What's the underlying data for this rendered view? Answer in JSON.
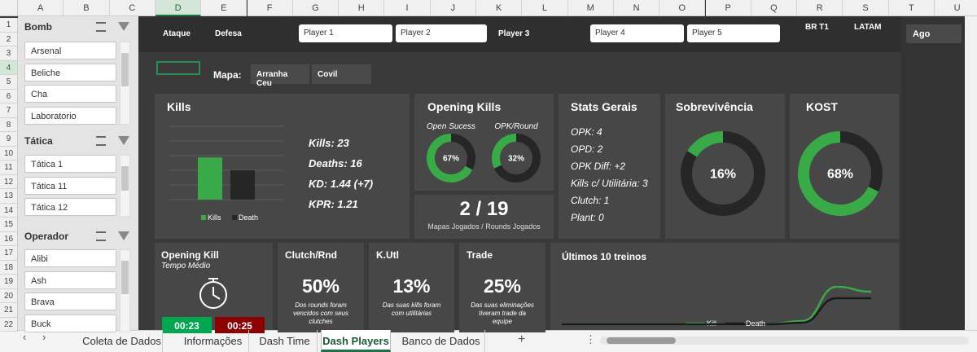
{
  "sheet": {
    "columns": [
      "A",
      "B",
      "C",
      "D",
      "E",
      "F",
      "G",
      "H",
      "I",
      "J",
      "K",
      "L",
      "M",
      "N",
      "O",
      "P",
      "Q",
      "R",
      "S",
      "T",
      "U"
    ],
    "rows": [
      1,
      2,
      3,
      4,
      5,
      6,
      7,
      8,
      9,
      10,
      11,
      12,
      13,
      14,
      15,
      16,
      17,
      18,
      19,
      20,
      21,
      22
    ]
  },
  "slicers": [
    {
      "title": "Bomb",
      "items": [
        "Arsenal",
        "Beliche",
        "Cha",
        "Laboratorio"
      ]
    },
    {
      "title": "Tática",
      "items": [
        "Tática 1",
        "Tática 11",
        "Tática 12"
      ]
    },
    {
      "title": "Operador",
      "items": [
        "Alibi",
        "Ash",
        "Brava",
        "Buck"
      ]
    }
  ],
  "filters": {
    "sides": [
      "Ataque",
      "Defesa"
    ],
    "players": [
      "Player 1",
      "Player 2",
      "Player 3",
      "Player 4",
      "Player 5"
    ],
    "regions": [
      "BR T1",
      "LATAM"
    ],
    "period": "Ago",
    "map_label": "Mapa:",
    "maps": [
      "Arranha Ceu",
      "Covil"
    ]
  },
  "kills": {
    "title": "Kills",
    "chart": {
      "type": "bar",
      "ylim": [
        0,
        40
      ],
      "series": [
        {
          "name": "Kills",
          "color": "#3aaa48",
          "values": [
            23
          ]
        },
        {
          "name": "Death",
          "color": "#262626",
          "values": [
            16
          ]
        }
      ]
    },
    "stats": [
      "Kills: 23",
      "Deaths: 16",
      "KD: 1.44 (+7)",
      "KPR: 1.21"
    ]
  },
  "opening_kills": {
    "title": "Opening Kills",
    "donuts": [
      {
        "label": "Open Sucess",
        "value": 67,
        "value_label": "67%",
        "color": "#3aaa48"
      },
      {
        "label": "OPK/Round",
        "value": 32,
        "value_label": "32%",
        "color": "#3aaa48"
      }
    ]
  },
  "maps_rounds": {
    "value": "2 / 19",
    "caption": "Mapas Jogados / Rounds Jogados"
  },
  "stats_gerais": {
    "title": "Stats Gerais",
    "lines": [
      "OPK: 4",
      "OPD: 2",
      "OPK Diff: +2",
      "Kills c/ Utilitária: 3",
      "Clutch: 1",
      "Plant: 0"
    ]
  },
  "survival": {
    "title": "Sobrevivência",
    "value": 16,
    "value_label": "16%",
    "color": "#3aaa48"
  },
  "kost": {
    "title": "KOST",
    "value": 68,
    "value_label": "68%",
    "color": "#3aaa48"
  },
  "opening_kill_time": {
    "title": "Opening Kill",
    "subtitle": "Tempo Médio",
    "times": [
      "00:23",
      "00:25"
    ]
  },
  "rates": [
    {
      "title": "Clutch/Rnd",
      "value": "50%",
      "caption": "Dos rounds foram vencidos com seus clutches"
    },
    {
      "title": "K.Utl",
      "value": "13%",
      "caption": "Das suas kills foram com utilitárias"
    },
    {
      "title": "Trade",
      "value": "25%",
      "caption": "Das suas eliminações tiveram trade da equipe"
    }
  ],
  "trend": {
    "title": "Últimos 10 treinos",
    "chart": {
      "type": "line",
      "ylim": [
        0,
        30
      ],
      "series": [
        {
          "name": "Kill",
          "color": "#3aaa48",
          "values": [
            0,
            0,
            0,
            0,
            0,
            0,
            0,
            2,
            23,
            20
          ]
        },
        {
          "name": "Death",
          "color": "#1a1a1a",
          "values": [
            0,
            0,
            0,
            0,
            0,
            0,
            0,
            1,
            16,
            16
          ]
        }
      ]
    }
  },
  "tabs": {
    "items": [
      "Coleta de Dados",
      "Informações",
      "Dash Time",
      "Dash Players",
      "Banco de Dados"
    ],
    "active": 3
  }
}
